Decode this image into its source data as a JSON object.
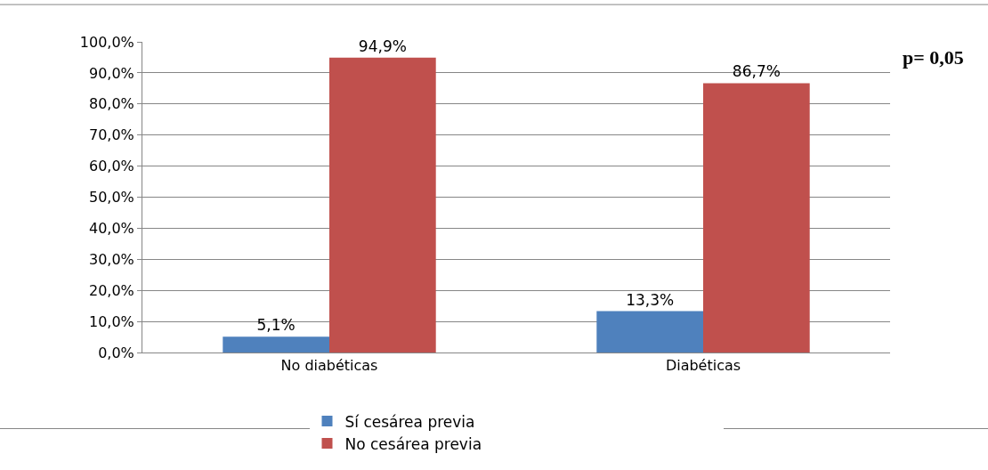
{
  "chart_data": {
    "type": "bar",
    "categories": [
      "No diabéticas",
      "Diabéticas"
    ],
    "series": [
      {
        "name": "Sí cesárea previa",
        "color": "#4f81bd",
        "values": [
          5.1,
          13.3
        ],
        "value_labels": [
          "5,1%",
          "13,3%"
        ]
      },
      {
        "name": "No cesárea previa",
        "color": "#c0504d",
        "values": [
          94.9,
          86.7
        ],
        "value_labels": [
          "94,9%",
          "86,7%"
        ]
      }
    ],
    "ylim": [
      0,
      100
    ],
    "yticks": [
      {
        "value": 0,
        "label": "0,0%"
      },
      {
        "value": 10,
        "label": "10,0%"
      },
      {
        "value": 20,
        "label": "20,0%"
      },
      {
        "value": 30,
        "label": "30,0%"
      },
      {
        "value": 40,
        "label": "40,0%"
      },
      {
        "value": 50,
        "label": "50,0%"
      },
      {
        "value": 60,
        "label": "60,0%"
      },
      {
        "value": 70,
        "label": "70,0%"
      },
      {
        "value": 80,
        "label": "80,0%"
      },
      {
        "value": 90,
        "label": "90,0%"
      },
      {
        "value": 100,
        "label": "100,0%"
      }
    ],
    "grid": "y",
    "legend": "bottom",
    "annotations": [
      "p= 0,05"
    ]
  }
}
